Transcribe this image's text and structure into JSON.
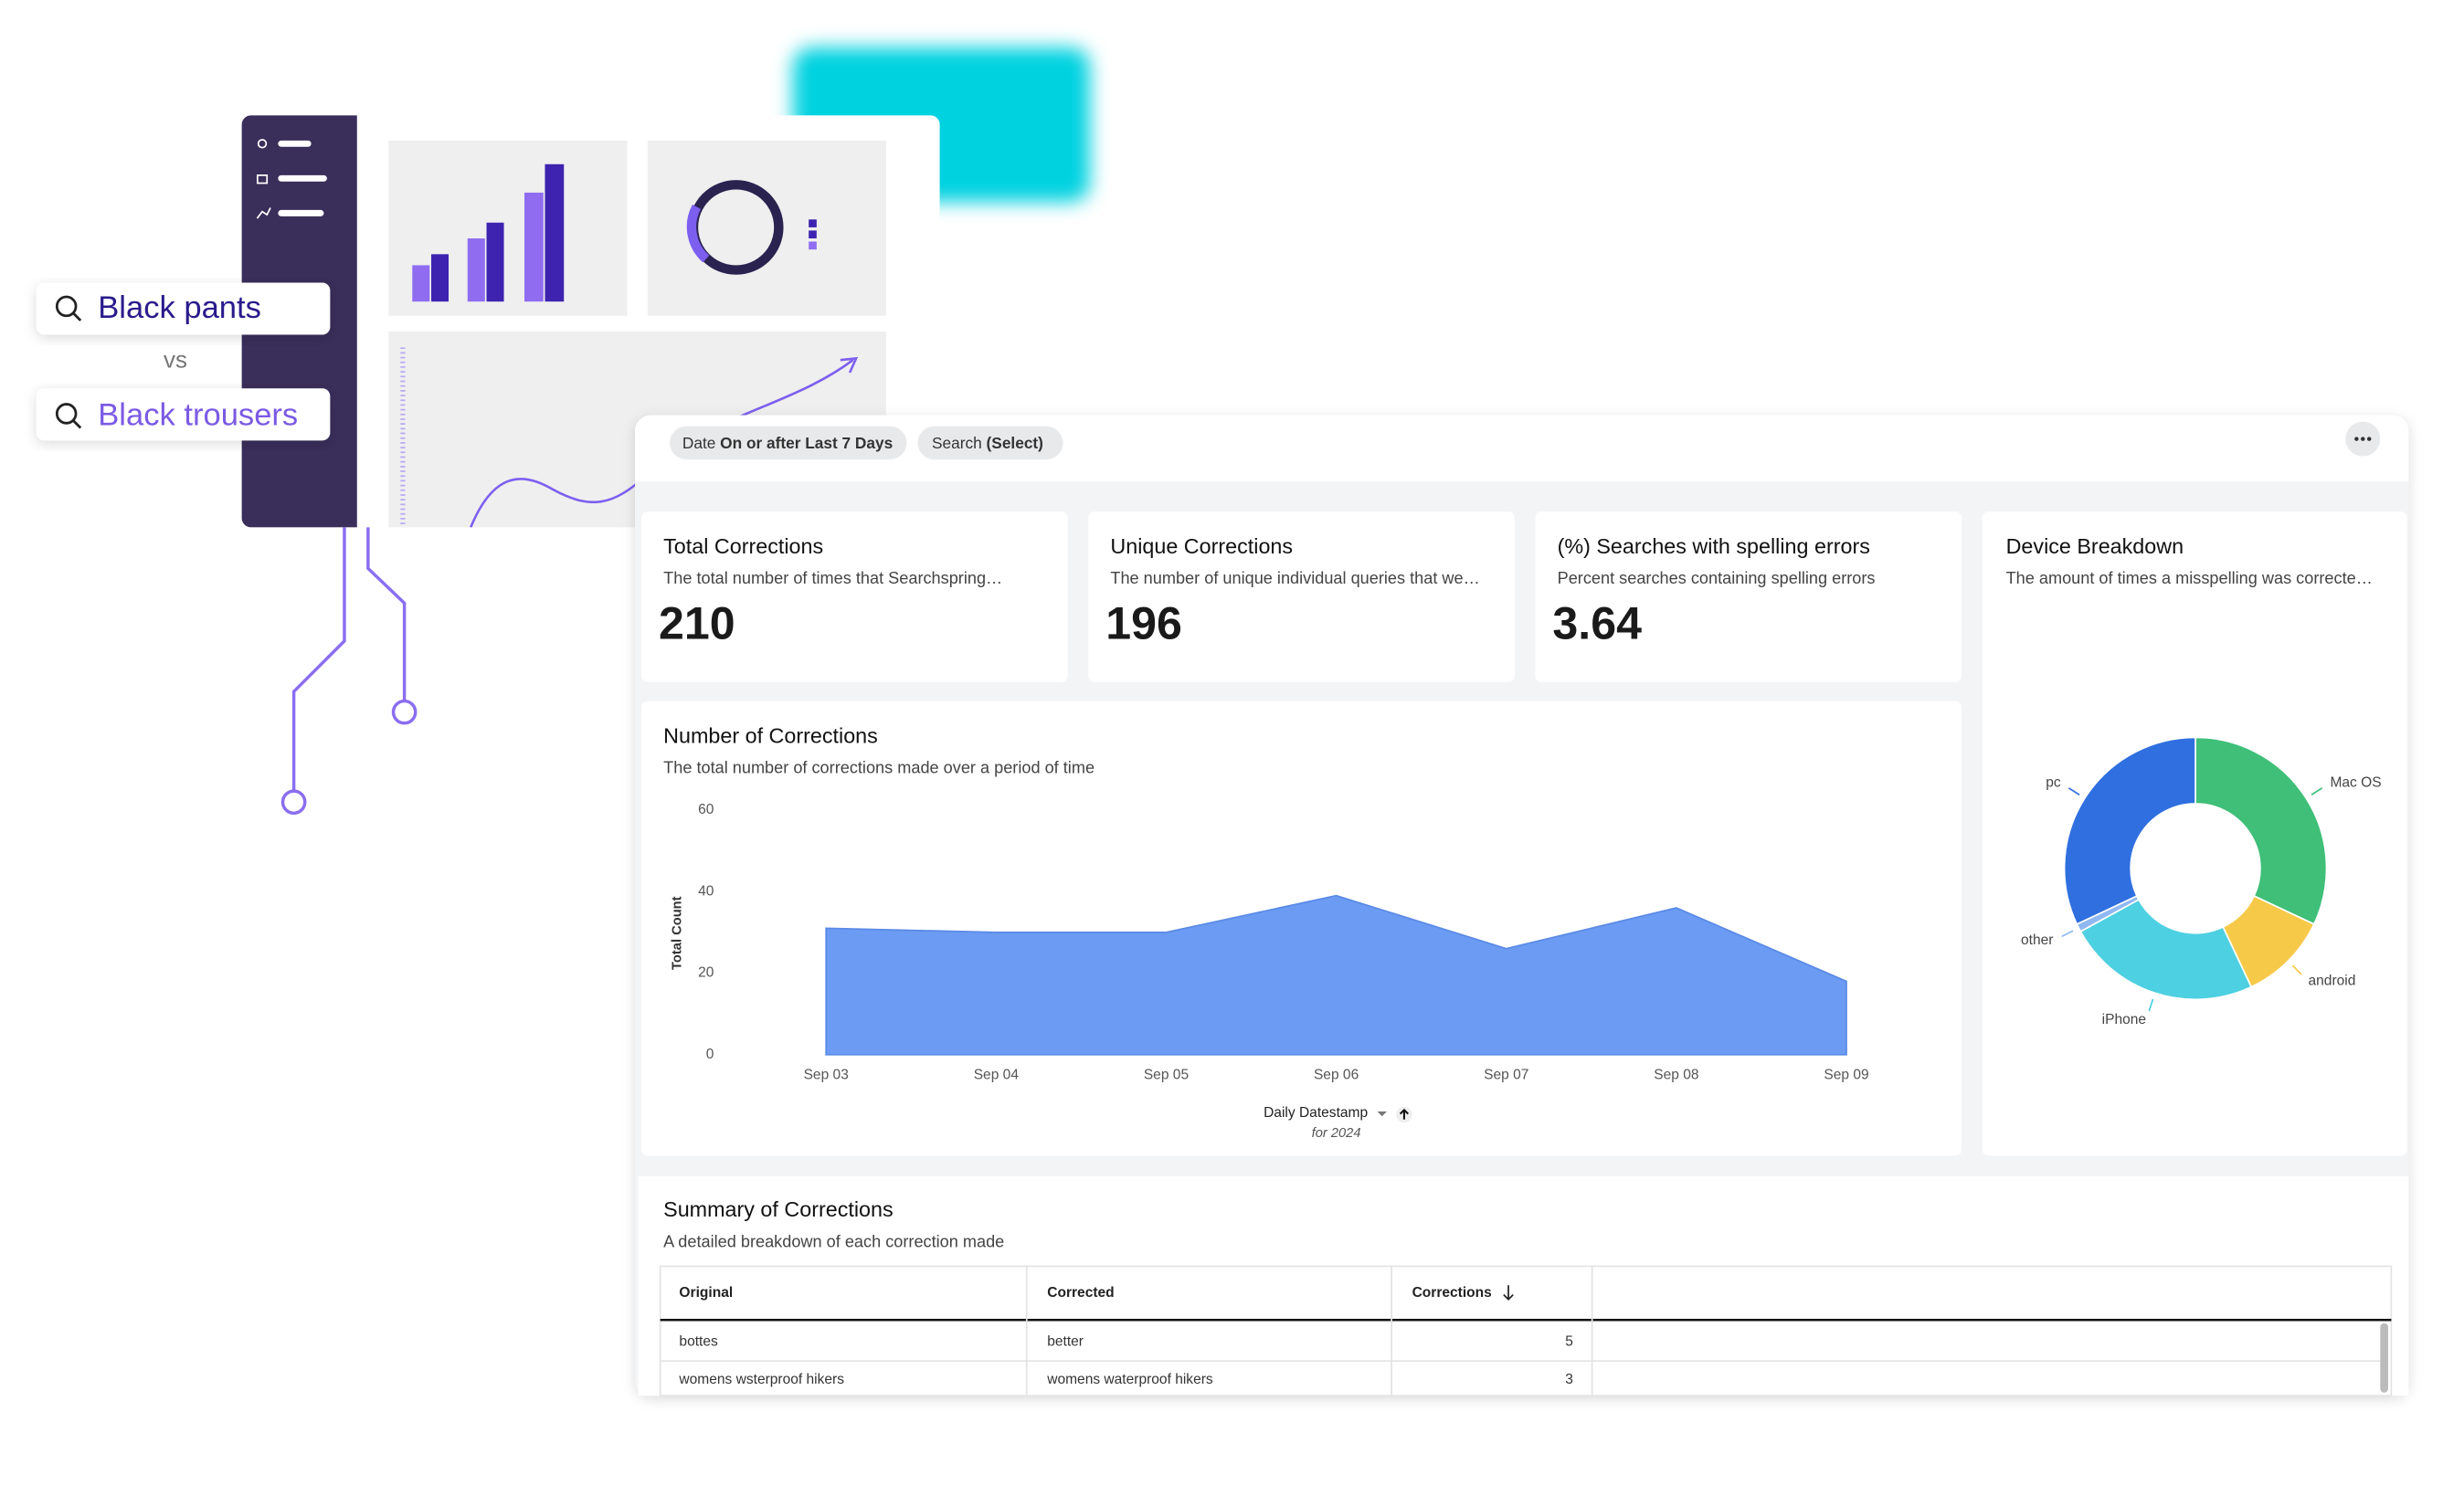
{
  "search_compare": {
    "first": "Black pants",
    "separator": "vs",
    "second": "Black trousers"
  },
  "dashboard": {
    "filters": [
      {
        "field": "Date",
        "value": "On or after Last 7 Days"
      },
      {
        "field": "Search",
        "value": "(Select)"
      }
    ],
    "kpis": [
      {
        "title": "Total Corrections",
        "description": "The total number of times that Searchspring…",
        "value": "210"
      },
      {
        "title": "Unique Corrections",
        "description": "The number of unique individual queries that we…",
        "value": "196"
      },
      {
        "title": "(%) Searches with spelling errors",
        "description": "Percent searches containing spelling errors",
        "value": "3.64"
      }
    ],
    "corrections_chart": {
      "type": "area",
      "title": "Number of Corrections",
      "subtitle": "The total number of corrections made over a period of time",
      "categories": [
        "Sep 03",
        "Sep 04",
        "Sep 05",
        "Sep 06",
        "Sep 07",
        "Sep 08",
        "Sep 09"
      ],
      "values": [
        31,
        30,
        30,
        39,
        26,
        36,
        18
      ],
      "color": "#6b9bf2",
      "ylim": [
        0,
        60
      ],
      "yticks": [
        0,
        20,
        40,
        60
      ],
      "ylabel": "Total Count",
      "xlabel": "Daily Datestamp",
      "xlabel_note": "for 2024"
    },
    "device_chart": {
      "type": "donut",
      "title": "Device Breakdown",
      "subtitle": "The amount of times a misspelling was correcte…",
      "categories": [
        "Mac OS",
        "android",
        "iPhone",
        "other",
        "pc"
      ],
      "values": [
        32,
        11,
        24,
        1,
        32
      ],
      "colors": [
        "#3fbf78",
        "#f7c948",
        "#4dd0e1",
        "#8fb8f2",
        "#2f6fe0"
      ]
    },
    "table": {
      "title": "Summary of Corrections",
      "subtitle": "A detailed breakdown of each correction made",
      "columns": [
        "Original",
        "Corrected",
        "Corrections"
      ],
      "rows": [
        [
          "bottes",
          "better",
          "5"
        ],
        [
          "womens wsterproof hikers",
          "womens waterproof hikers",
          "3"
        ]
      ]
    }
  }
}
